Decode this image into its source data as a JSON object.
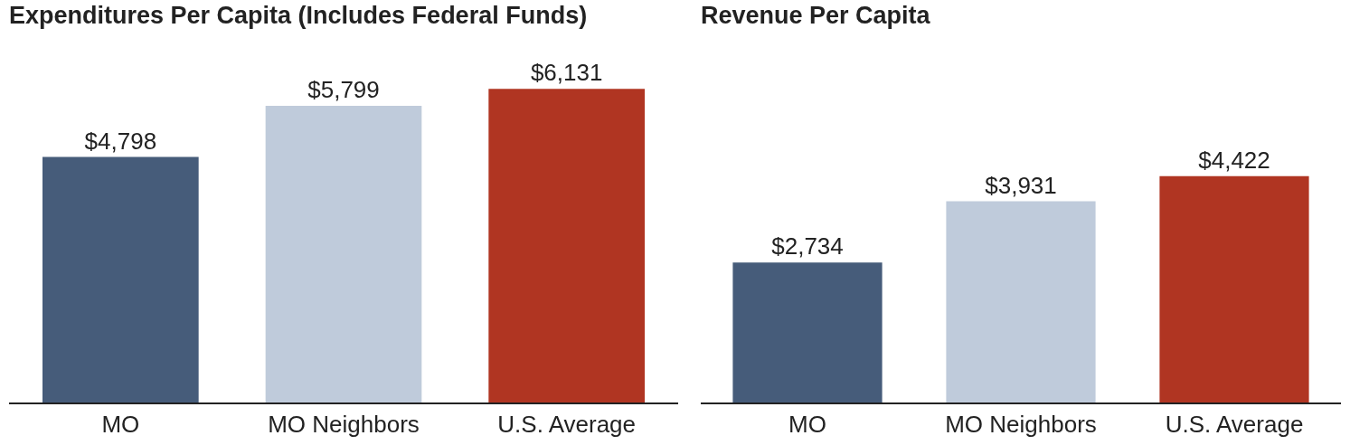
{
  "chart_data": [
    {
      "type": "bar",
      "title": "Expenditures Per Capita (Includes Federal Funds)",
      "categories": [
        "MO",
        "MO Neighbors",
        "U.S. Average"
      ],
      "values": [
        4798,
        5799,
        6131
      ],
      "colors": [
        "#465c7a",
        "#bfcbdb",
        "#b03522"
      ],
      "value_labels": [
        "$4,798",
        "$5,799",
        "$6,131"
      ]
    },
    {
      "type": "bar",
      "title": "Revenue Per Capita",
      "categories": [
        "MO",
        "MO Neighbors",
        "U.S. Average"
      ],
      "values": [
        2734,
        3931,
        4422
      ],
      "colors": [
        "#465c7a",
        "#bfcbdb",
        "#b03522"
      ],
      "value_labels": [
        "$2,734",
        "$3,931",
        "$4,422"
      ]
    }
  ]
}
